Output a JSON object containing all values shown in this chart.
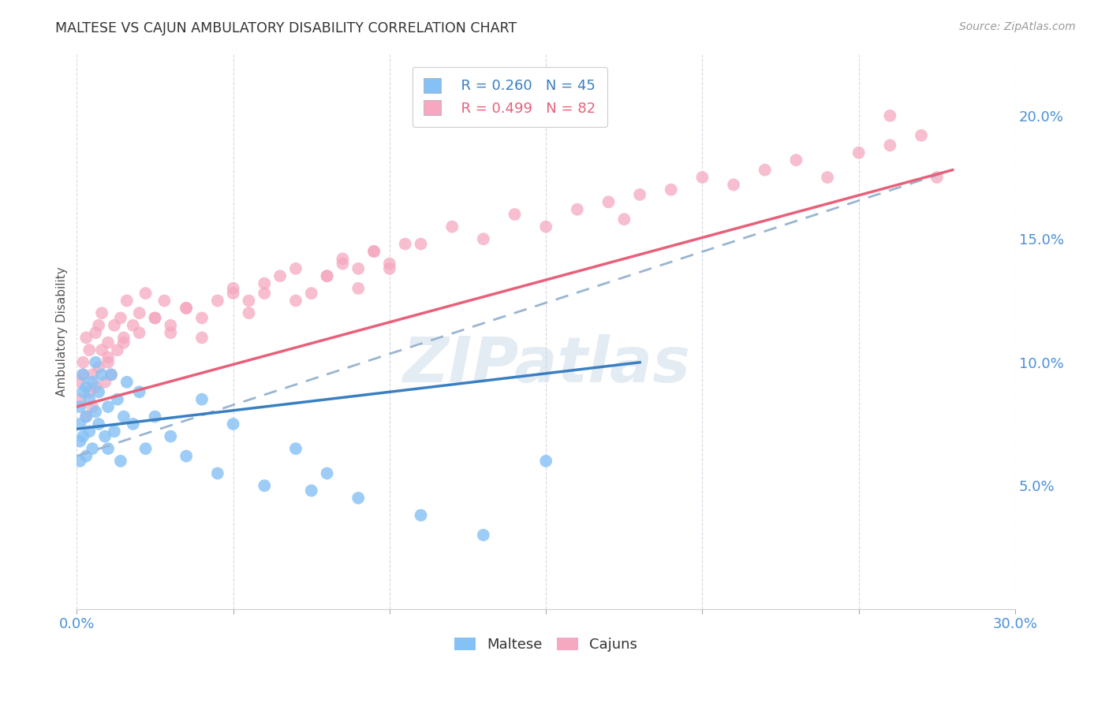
{
  "title": "MALTESE VS CAJUN AMBULATORY DISABILITY CORRELATION CHART",
  "source": "Source: ZipAtlas.com",
  "ylabel": "Ambulatory Disability",
  "xlim": [
    0.0,
    0.3
  ],
  "ylim": [
    0.0,
    0.225
  ],
  "ytick_positions": [
    0.05,
    0.1,
    0.15,
    0.2
  ],
  "ytick_labels": [
    "5.0%",
    "10.0%",
    "15.0%",
    "20.0%"
  ],
  "legend_r_maltese": "R = 0.260",
  "legend_n_maltese": "N = 45",
  "legend_r_cajun": "R = 0.499",
  "legend_n_cajun": "N = 82",
  "maltese_color": "#85c1f5",
  "cajun_color": "#f5a8bf",
  "maltese_line_color": "#3a7fc1",
  "cajun_line_color": "#e8607a",
  "dashed_line_color": "#9ab5d0",
  "background_color": "#ffffff",
  "watermark": "ZIPatlas",
  "maltese_x": [
    0.001,
    0.001,
    0.001,
    0.001,
    0.002,
    0.002,
    0.002,
    0.003,
    0.003,
    0.003,
    0.004,
    0.004,
    0.005,
    0.005,
    0.006,
    0.006,
    0.007,
    0.007,
    0.008,
    0.009,
    0.01,
    0.01,
    0.011,
    0.012,
    0.013,
    0.014,
    0.015,
    0.016,
    0.018,
    0.02,
    0.022,
    0.025,
    0.03,
    0.035,
    0.04,
    0.045,
    0.05,
    0.06,
    0.07,
    0.075,
    0.08,
    0.09,
    0.11,
    0.13,
    0.15
  ],
  "maltese_y": [
    0.075,
    0.082,
    0.068,
    0.06,
    0.088,
    0.095,
    0.07,
    0.078,
    0.062,
    0.09,
    0.072,
    0.085,
    0.065,
    0.092,
    0.08,
    0.1,
    0.075,
    0.088,
    0.095,
    0.07,
    0.082,
    0.065,
    0.095,
    0.072,
    0.085,
    0.06,
    0.078,
    0.092,
    0.075,
    0.088,
    0.065,
    0.078,
    0.07,
    0.062,
    0.085,
    0.055,
    0.075,
    0.05,
    0.065,
    0.048,
    0.055,
    0.045,
    0.038,
    0.03,
    0.06
  ],
  "cajun_x": [
    0.001,
    0.001,
    0.002,
    0.002,
    0.003,
    0.003,
    0.004,
    0.004,
    0.005,
    0.005,
    0.006,
    0.006,
    0.007,
    0.007,
    0.008,
    0.008,
    0.009,
    0.01,
    0.01,
    0.011,
    0.012,
    0.013,
    0.014,
    0.015,
    0.016,
    0.018,
    0.02,
    0.022,
    0.025,
    0.028,
    0.03,
    0.035,
    0.04,
    0.045,
    0.05,
    0.055,
    0.06,
    0.065,
    0.07,
    0.08,
    0.085,
    0.09,
    0.095,
    0.1,
    0.11,
    0.12,
    0.13,
    0.14,
    0.15,
    0.16,
    0.17,
    0.175,
    0.18,
    0.19,
    0.2,
    0.21,
    0.22,
    0.23,
    0.24,
    0.25,
    0.26,
    0.27,
    0.275,
    0.01,
    0.015,
    0.02,
    0.025,
    0.03,
    0.035,
    0.04,
    0.05,
    0.055,
    0.06,
    0.07,
    0.075,
    0.08,
    0.085,
    0.09,
    0.095,
    0.1,
    0.105,
    0.26
  ],
  "cajun_y": [
    0.085,
    0.092,
    0.095,
    0.1,
    0.078,
    0.11,
    0.088,
    0.105,
    0.082,
    0.095,
    0.112,
    0.09,
    0.098,
    0.115,
    0.105,
    0.12,
    0.092,
    0.1,
    0.108,
    0.095,
    0.115,
    0.105,
    0.118,
    0.11,
    0.125,
    0.115,
    0.12,
    0.128,
    0.118,
    0.125,
    0.112,
    0.122,
    0.118,
    0.125,
    0.13,
    0.12,
    0.128,
    0.135,
    0.125,
    0.135,
    0.14,
    0.13,
    0.145,
    0.138,
    0.148,
    0.155,
    0.15,
    0.16,
    0.155,
    0.162,
    0.165,
    0.158,
    0.168,
    0.17,
    0.175,
    0.172,
    0.178,
    0.182,
    0.175,
    0.185,
    0.188,
    0.192,
    0.175,
    0.102,
    0.108,
    0.112,
    0.118,
    0.115,
    0.122,
    0.11,
    0.128,
    0.125,
    0.132,
    0.138,
    0.128,
    0.135,
    0.142,
    0.138,
    0.145,
    0.14,
    0.148,
    0.2
  ],
  "maltese_line_x": [
    0.0,
    0.18
  ],
  "maltese_line_y": [
    0.073,
    0.1
  ],
  "cajun_line_x": [
    0.0,
    0.28
  ],
  "cajun_line_y": [
    0.082,
    0.178
  ],
  "dashed_line_x": [
    0.0,
    0.28
  ],
  "dashed_line_y": [
    0.062,
    0.178
  ]
}
